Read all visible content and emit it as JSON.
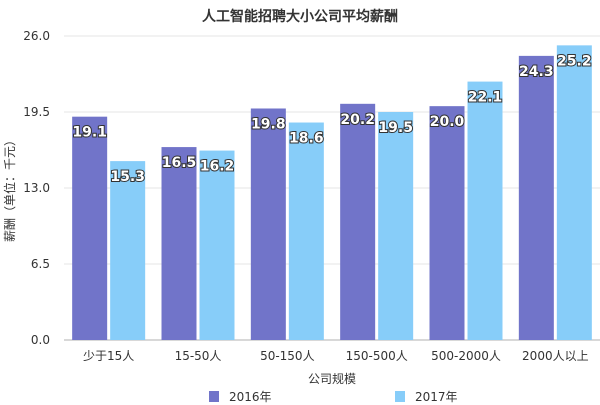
{
  "chart_data": {
    "type": "bar",
    "title": "人工智能招聘大小公司平均薪酬",
    "xlabel": "公司规模",
    "ylabel": "薪酬（单位：千元）",
    "categories": [
      "少于15人",
      "15-50人",
      "50-150人",
      "150-500人",
      "500-2000人",
      "2000人以上"
    ],
    "series": [
      {
        "name": "2016年",
        "color": "#7174c9",
        "values": [
          19.1,
          16.5,
          19.8,
          20.2,
          20.0,
          24.3
        ]
      },
      {
        "name": "2017年",
        "color": "#87cdf9",
        "values": [
          15.3,
          16.2,
          18.6,
          19.5,
          22.1,
          25.2
        ]
      }
    ],
    "ylim": [
      0,
      26
    ],
    "yticks": [
      "0.0",
      "6.5",
      "13.0",
      "19.5",
      "26.0"
    ],
    "grid": true,
    "legend": "bottom"
  }
}
